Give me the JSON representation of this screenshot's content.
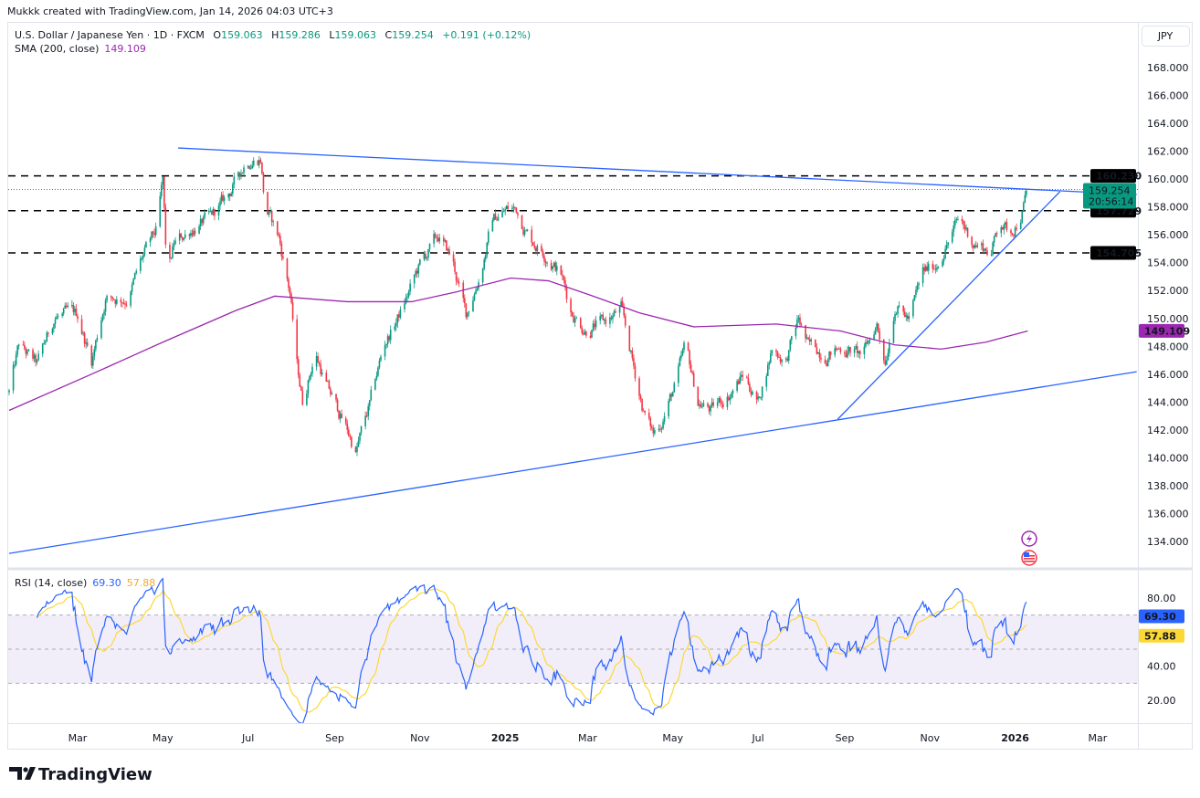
{
  "watermark": "Mukkk created with TradingView.com, Jan 14, 2026 04:03 UTC+3",
  "currency_button": "JPY",
  "legend": {
    "symbol": "U.S. Dollar / Japanese Yen · 1D · FXCM",
    "o_label": "O",
    "o": "159.063",
    "h_label": "H",
    "h": "159.286",
    "l_label": "L",
    "l": "159.063",
    "c_label": "C",
    "c": "159.254",
    "change": "+0.191 (+0.12%)",
    "sma_label": "SMA (200, close)",
    "sma": "149.109",
    "rsi_label": "RSI (14, close)",
    "rsi": "69.30",
    "rsi_ma": "57.88"
  },
  "colors": {
    "up": "#089981",
    "down": "#f23645",
    "sma": "#9c27b0",
    "trend": "#2962ff",
    "rsi": "#2962ff",
    "rsi_ma": "#fdd835"
  },
  "logo": "TradingView",
  "chart_data": {
    "type": "candlestick",
    "symbol": "USDJPY",
    "interval": "1D",
    "x_unit": "days since 2024-01-12",
    "x_range": [
      0,
      807
    ],
    "ylim": [
      133,
      169
    ],
    "y_ticks": [
      "134.000",
      "136.000",
      "138.000",
      "140.000",
      "142.000",
      "144.000",
      "146.000",
      "148.000",
      "150.000",
      "152.000",
      "154.000",
      "156.000",
      "158.000",
      "160.000",
      "162.000",
      "164.000",
      "166.000",
      "168.000"
    ],
    "x_ticks": [
      {
        "day": 49,
        "label": "Mar"
      },
      {
        "day": 110,
        "label": "May"
      },
      {
        "day": 171,
        "label": "Jul"
      },
      {
        "day": 233,
        "label": "Sep"
      },
      {
        "day": 294,
        "label": "Nov"
      },
      {
        "day": 355,
        "label": "2025"
      },
      {
        "day": 414,
        "label": "Mar"
      },
      {
        "day": 475,
        "label": "May"
      },
      {
        "day": 536,
        "label": "Jul"
      },
      {
        "day": 598,
        "label": "Sep"
      },
      {
        "day": 659,
        "label": "Nov"
      },
      {
        "day": 720,
        "label": "2026"
      },
      {
        "day": 779,
        "label": "Mar"
      }
    ],
    "close_path": [
      [
        0,
        144.7
      ],
      [
        7,
        148
      ],
      [
        20,
        146.6
      ],
      [
        33,
        150.2
      ],
      [
        49,
        150.2
      ],
      [
        59,
        147
      ],
      [
        69,
        151.5
      ],
      [
        85,
        151.5
      ],
      [
        95,
        154.2
      ],
      [
        105,
        156.1
      ],
      [
        110,
        159.7
      ],
      [
        113,
        152.8
      ],
      [
        118,
        155.2
      ],
      [
        131,
        156.5
      ],
      [
        144,
        157.1
      ],
      [
        157,
        158.8
      ],
      [
        170,
        161.4
      ],
      [
        180,
        161.6
      ],
      [
        183,
        158.1
      ],
      [
        193,
        155.8
      ],
      [
        201,
        151.9
      ],
      [
        206,
        146.6
      ],
      [
        210,
        144
      ],
      [
        219,
        147.6
      ],
      [
        229,
        144.7
      ],
      [
        242,
        142
      ],
      [
        248,
        140.4
      ],
      [
        258,
        143.7
      ],
      [
        268,
        148
      ],
      [
        281,
        150.6
      ],
      [
        294,
        153.8
      ],
      [
        307,
        155.8
      ],
      [
        317,
        154.2
      ],
      [
        327,
        150.2
      ],
      [
        337,
        153.2
      ],
      [
        346,
        157.1
      ],
      [
        356,
        157.8
      ],
      [
        363,
        157.8
      ],
      [
        373,
        155.8
      ],
      [
        386,
        154.5
      ],
      [
        395,
        153.2
      ],
      [
        402,
        150.6
      ],
      [
        412,
        149.3
      ],
      [
        425,
        149.6
      ],
      [
        438,
        150.6
      ],
      [
        448,
        146
      ],
      [
        454,
        143.4
      ],
      [
        461,
        141.7
      ],
      [
        467,
        142.7
      ],
      [
        477,
        145.3
      ],
      [
        484,
        147.9
      ],
      [
        493,
        144
      ],
      [
        503,
        143.4
      ],
      [
        516,
        144.7
      ],
      [
        526,
        146
      ],
      [
        536,
        144
      ],
      [
        546,
        147.9
      ],
      [
        556,
        147
      ],
      [
        565,
        149.9
      ],
      [
        572,
        147.9
      ],
      [
        585,
        147.6
      ],
      [
        598,
        147.9
      ],
      [
        611,
        147.3
      ],
      [
        621,
        149.6
      ],
      [
        627,
        147
      ],
      [
        634,
        151.2
      ],
      [
        644,
        149.9
      ],
      [
        654,
        153.2
      ],
      [
        663,
        153.8
      ],
      [
        673,
        155.8
      ],
      [
        680,
        157.1
      ],
      [
        690,
        155.5
      ],
      [
        703,
        154.8
      ],
      [
        709,
        157.1
      ],
      [
        716,
        156.1
      ],
      [
        722,
        157.1
      ],
      [
        725,
        157.8
      ],
      [
        729,
        159.25
      ]
    ],
    "sma200_path": [
      [
        0,
        143.4
      ],
      [
        59,
        146
      ],
      [
        110,
        148.3
      ],
      [
        163,
        150.6
      ],
      [
        190,
        151.6
      ],
      [
        242,
        151.2
      ],
      [
        288,
        151.2
      ],
      [
        320,
        151.9
      ],
      [
        359,
        152.9
      ],
      [
        386,
        152.7
      ],
      [
        418,
        151.6
      ],
      [
        451,
        150.4
      ],
      [
        490,
        149.4
      ],
      [
        549,
        149.6
      ],
      [
        595,
        149.1
      ],
      [
        634,
        148.1
      ],
      [
        667,
        147.8
      ],
      [
        699,
        148.3
      ],
      [
        729,
        149.1
      ]
    ],
    "horizontal_levels": [
      {
        "price": 160.23,
        "label": "160.230"
      },
      {
        "price": 157.729,
        "label": "157.729"
      },
      {
        "price": 154.705,
        "label": "154.705"
      }
    ],
    "trendlines": [
      {
        "name": "upper-resistance",
        "from": [
          121,
          162.23
        ],
        "to": [
          807,
          158.89
        ]
      },
      {
        "name": "lower-support",
        "from": [
          0,
          133.14
        ],
        "to": [
          807,
          146.18
        ]
      },
      {
        "name": "rising-support",
        "from": [
          593,
          142.77
        ],
        "to": [
          752,
          159.09
        ]
      }
    ],
    "last_price": {
      "price": 159.254,
      "label": "159.254",
      "countdown": "20:56:14"
    },
    "sma_last": {
      "price": 149.109,
      "label": "149.109"
    },
    "rsi": {
      "period": 14,
      "ylim": [
        10,
        90
      ],
      "bands": {
        "upper": 70,
        "middle": 50,
        "lower": 30
      },
      "y_ticks": [
        {
          "value": 80,
          "label": "80.00"
        },
        {
          "value": 40,
          "label": "40.00"
        },
        {
          "value": 20,
          "label": "20.00"
        }
      ],
      "last": {
        "value": 69.3,
        "label": "69.30"
      },
      "ma_last": {
        "value": 57.88,
        "label": "57.88"
      }
    }
  }
}
